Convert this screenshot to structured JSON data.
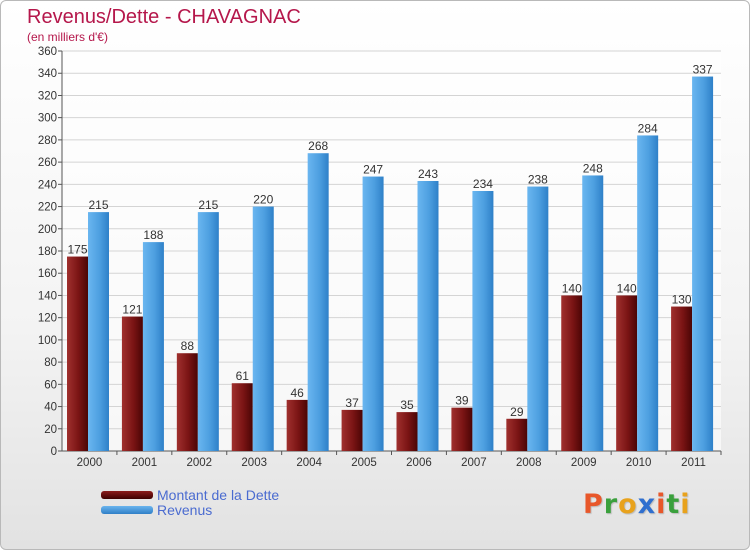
{
  "chart_data": {
    "type": "bar",
    "title": "Revenus/Dette - CHAVAGNAC",
    "subtitle": "(en milliers d'€)",
    "categories": [
      "2000",
      "2001",
      "2002",
      "2003",
      "2004",
      "2005",
      "2006",
      "2007",
      "2008",
      "2009",
      "2010",
      "2011"
    ],
    "series": [
      {
        "name": "Montant de la Dette",
        "color": "#7a1414",
        "values": [
          175,
          121,
          88,
          61,
          46,
          37,
          35,
          39,
          29,
          140,
          140,
          130
        ]
      },
      {
        "name": "Revenus",
        "color": "#4d9fe0",
        "values": [
          215,
          188,
          215,
          220,
          268,
          247,
          243,
          234,
          238,
          248,
          284,
          337
        ]
      }
    ],
    "ylim": [
      0,
      360
    ],
    "yticks": [
      0,
      20,
      40,
      60,
      80,
      100,
      120,
      140,
      160,
      180,
      200,
      220,
      240,
      260,
      280,
      300,
      320,
      340,
      360
    ],
    "grid": true,
    "legend": "bottom-left"
  },
  "logo": {
    "letters": [
      "P",
      "r",
      "o",
      "x",
      "i",
      "t",
      "i"
    ],
    "colors": [
      "#e8572a",
      "#3aa03c",
      "#e8a21c",
      "#2f6fcf",
      "#e8572a",
      "#3aa03c",
      "#e8a21c"
    ]
  }
}
